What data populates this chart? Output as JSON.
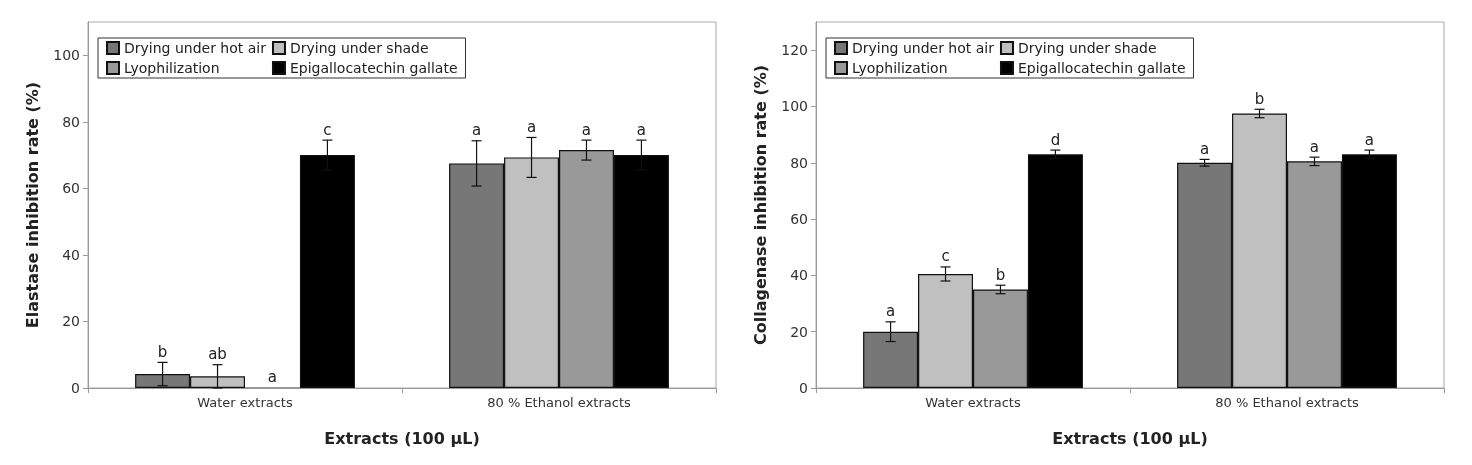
{
  "chart_data": [
    {
      "type": "bar",
      "xlabel": "Extracts (100 µL)",
      "ylabel": "Elastase inhibition rate (%)",
      "categories": [
        "Water extracts",
        "80 % Ethanol extracts"
      ],
      "ylim": [
        0,
        110
      ],
      "yticks": [
        0,
        20,
        40,
        60,
        80,
        100
      ],
      "grid": false,
      "legend": "top left",
      "series": [
        {
          "name": "Drying under hot air",
          "color": "#777777",
          "values": [
            4.2,
            67.5
          ],
          "errors": [
            3.5,
            6.8
          ],
          "value_labels": [
            "b",
            "a"
          ]
        },
        {
          "name": "Drying under shade",
          "color": "#c0c0c0",
          "values": [
            3.5,
            69.3
          ],
          "errors": [
            3.5,
            6
          ],
          "value_labels": [
            "ab",
            "a"
          ]
        },
        {
          "name": "Lyophilization",
          "color": "#999999",
          "values": [
            0.3,
            71.5
          ],
          "errors": [
            null,
            3
          ],
          "value_labels": [
            "a",
            "a"
          ]
        },
        {
          "name": "Epigallocatechin gallate",
          "color": "#000000",
          "values": [
            70,
            70
          ],
          "errors": [
            4.5,
            4.5
          ],
          "value_labels": [
            "c",
            "a"
          ]
        }
      ]
    },
    {
      "type": "bar",
      "xlabel": "Extracts (100 µL)",
      "ylabel": "Collagenase inhibition rate (%)",
      "categories": [
        "Water extracts",
        "80 % Ethanol extracts"
      ],
      "ylim": [
        0,
        130
      ],
      "yticks": [
        0,
        20,
        40,
        60,
        80,
        100,
        120
      ],
      "grid": false,
      "legend": "top left",
      "series": [
        {
          "name": "Drying under hot air",
          "color": "#777777",
          "values": [
            20,
            80
          ],
          "errors": [
            3.5,
            1.2
          ],
          "value_labels": [
            "a",
            "a"
          ]
        },
        {
          "name": "Drying under shade",
          "color": "#c0c0c0",
          "values": [
            40.5,
            97.5
          ],
          "errors": [
            2.5,
            1.5
          ],
          "value_labels": [
            "c",
            "b"
          ]
        },
        {
          "name": "Lyophilization",
          "color": "#999999",
          "values": [
            35,
            80.5
          ],
          "errors": [
            1.5,
            1.5
          ],
          "value_labels": [
            "b",
            "a"
          ]
        },
        {
          "name": "Epigallocatechin gallate",
          "color": "#000000",
          "values": [
            83,
            83
          ],
          "errors": [
            1.5,
            1.5
          ],
          "value_labels": [
            "d",
            "a"
          ]
        }
      ]
    }
  ]
}
